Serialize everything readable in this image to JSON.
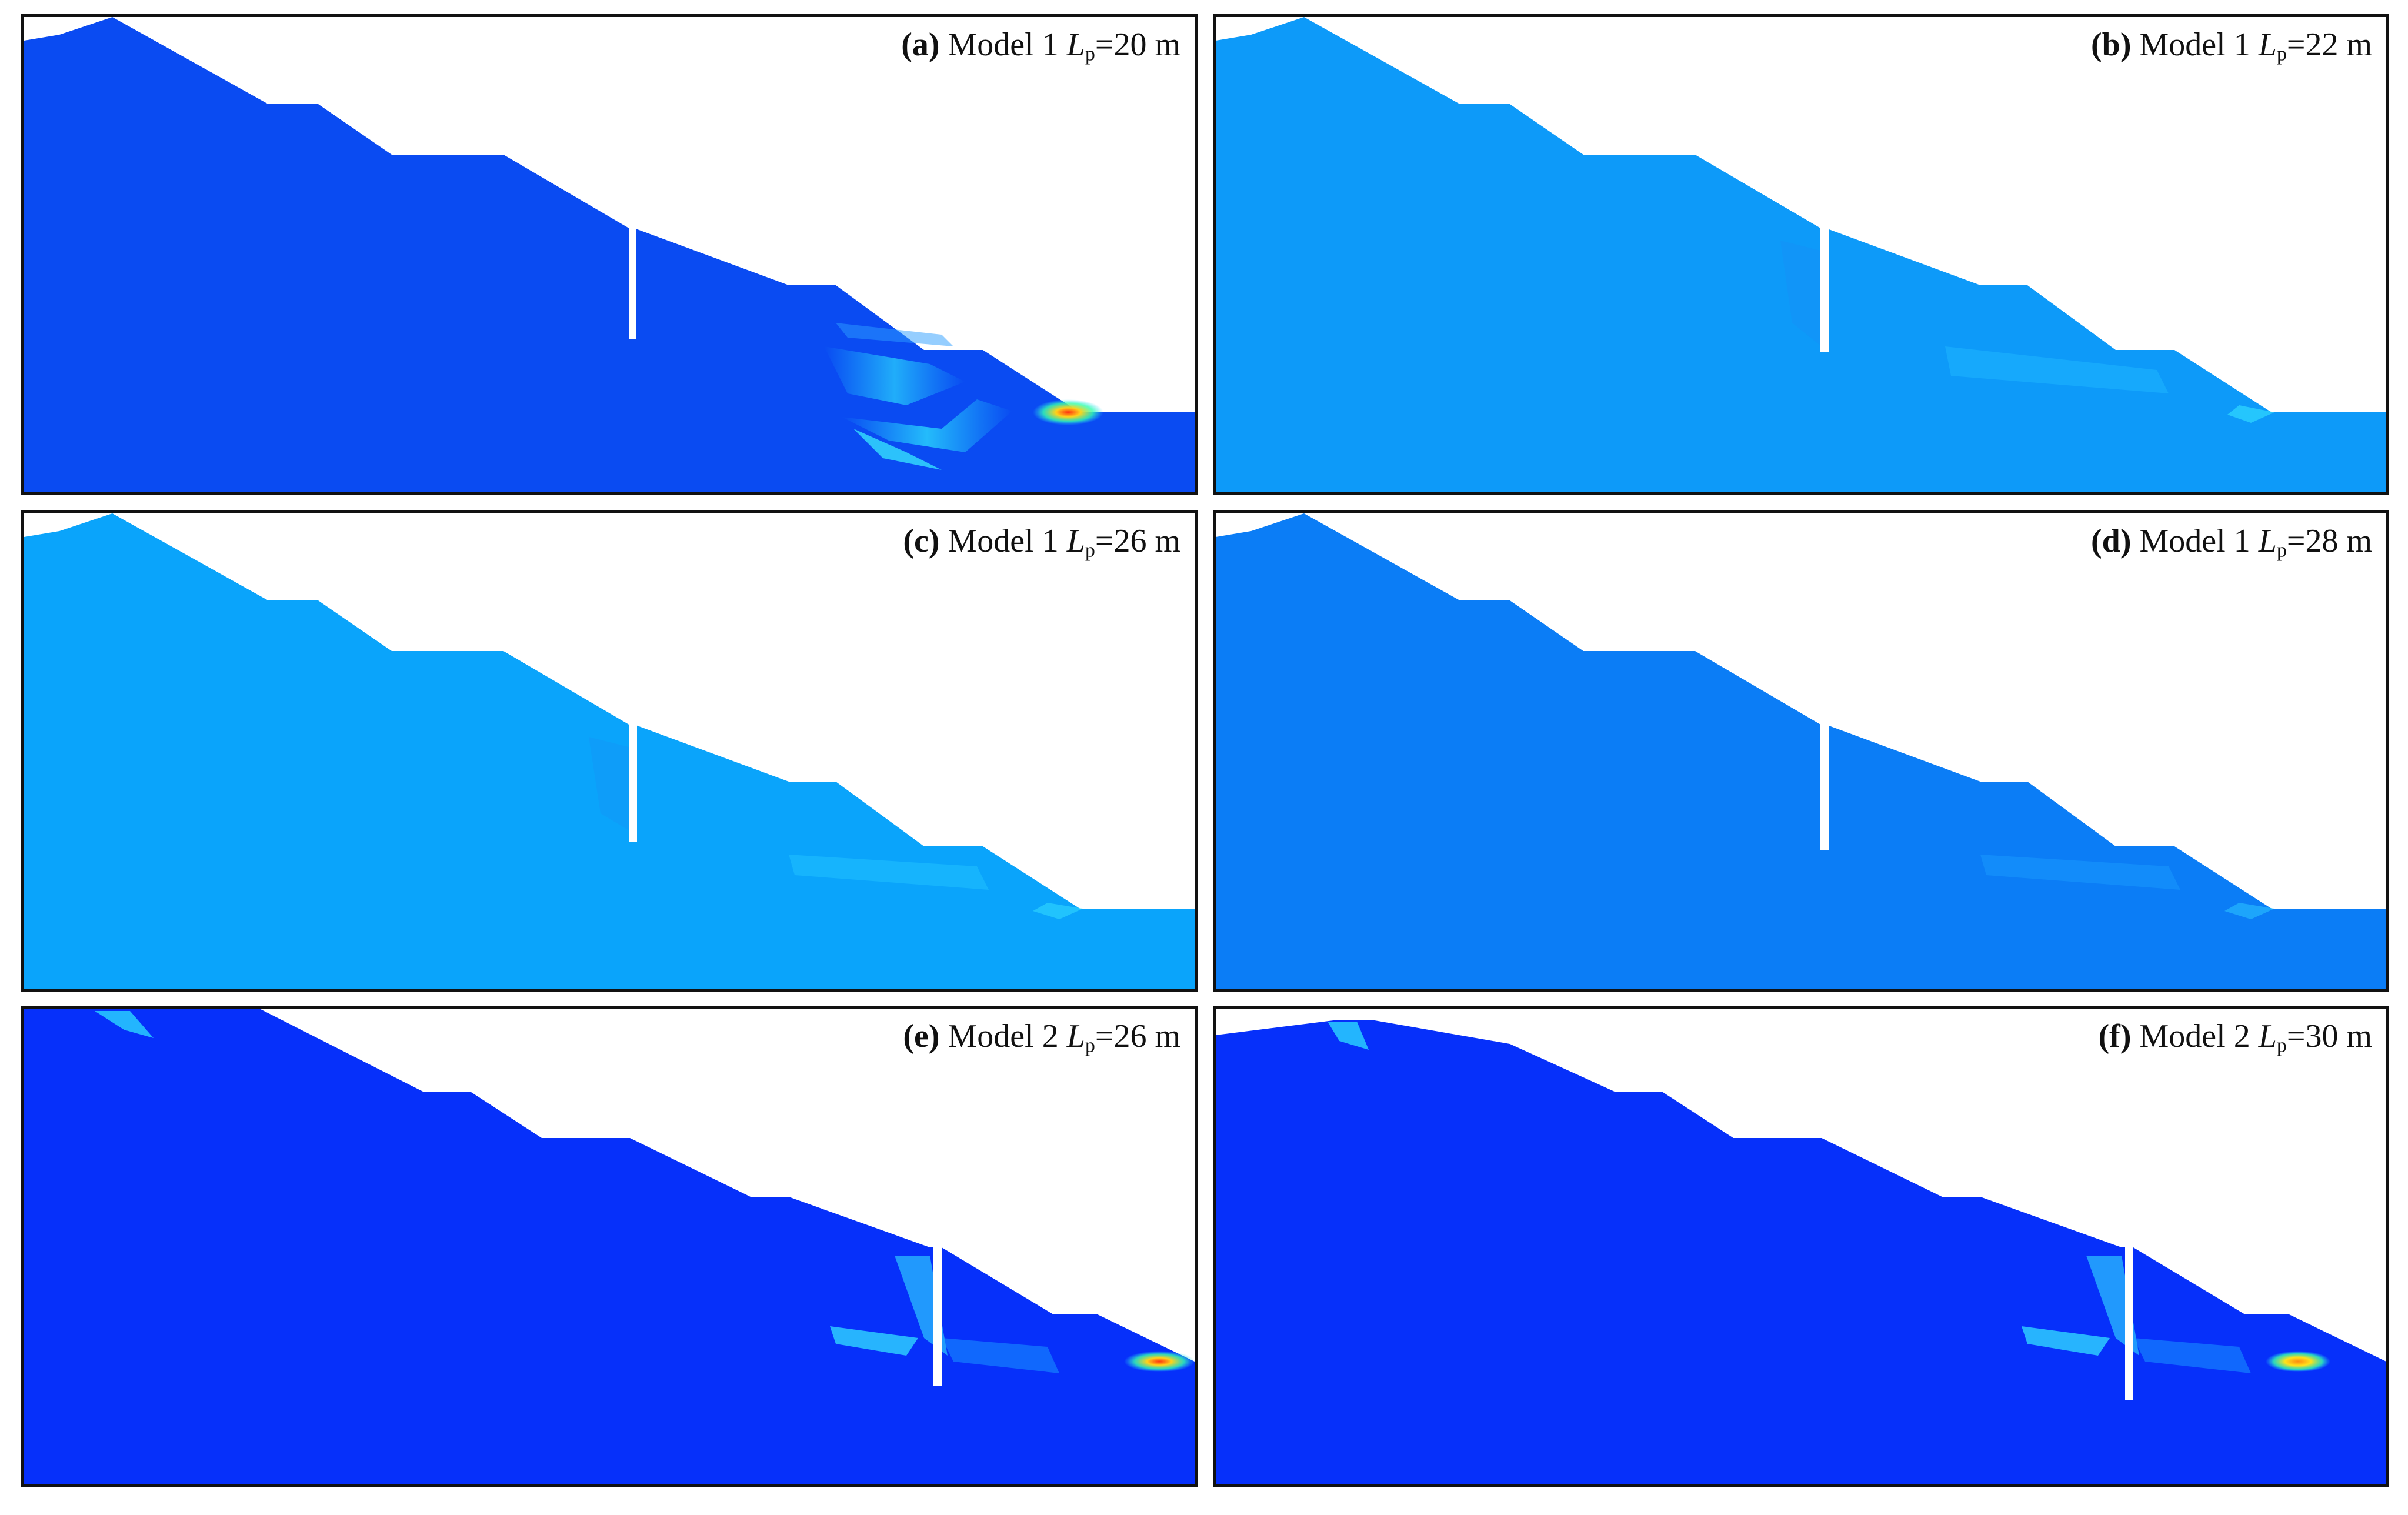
{
  "figure": {
    "panels": [
      {
        "id": "a",
        "letter": "(a)",
        "model": "Model 1",
        "lp_symbol": "L",
        "lp_sub": "p",
        "lp_value": "=20 m",
        "ground_color": "#0a4bf2",
        "pile_position": "upper"
      },
      {
        "id": "b",
        "letter": "(b)",
        "model": "Model 1",
        "lp_symbol": "L",
        "lp_sub": "p",
        "lp_value": "=22 m",
        "ground_color": "#0d9af9",
        "pile_position": "upper"
      },
      {
        "id": "c",
        "letter": "(c)",
        "model": "Model 1",
        "lp_symbol": "L",
        "lp_sub": "p",
        "lp_value": "=26 m",
        "ground_color": "#0aa4fb",
        "pile_position": "upper"
      },
      {
        "id": "d",
        "letter": "(d)",
        "model": "Model 1",
        "lp_symbol": "L",
        "lp_sub": "p",
        "lp_value": "=28 m",
        "ground_color": "#0b7df6",
        "pile_position": "upper"
      },
      {
        "id": "e",
        "letter": "(e)",
        "model": "Model 2",
        "lp_symbol": "L",
        "lp_sub": "p",
        "lp_value": "=26 m",
        "ground_color": "#0630fa",
        "pile_position": "lower"
      },
      {
        "id": "f",
        "letter": "(f)",
        "model": "Model 2",
        "lp_symbol": "L",
        "lp_sub": "p",
        "lp_value": "=30 m",
        "ground_color": "#0630fa",
        "pile_position": "lower"
      }
    ]
  }
}
